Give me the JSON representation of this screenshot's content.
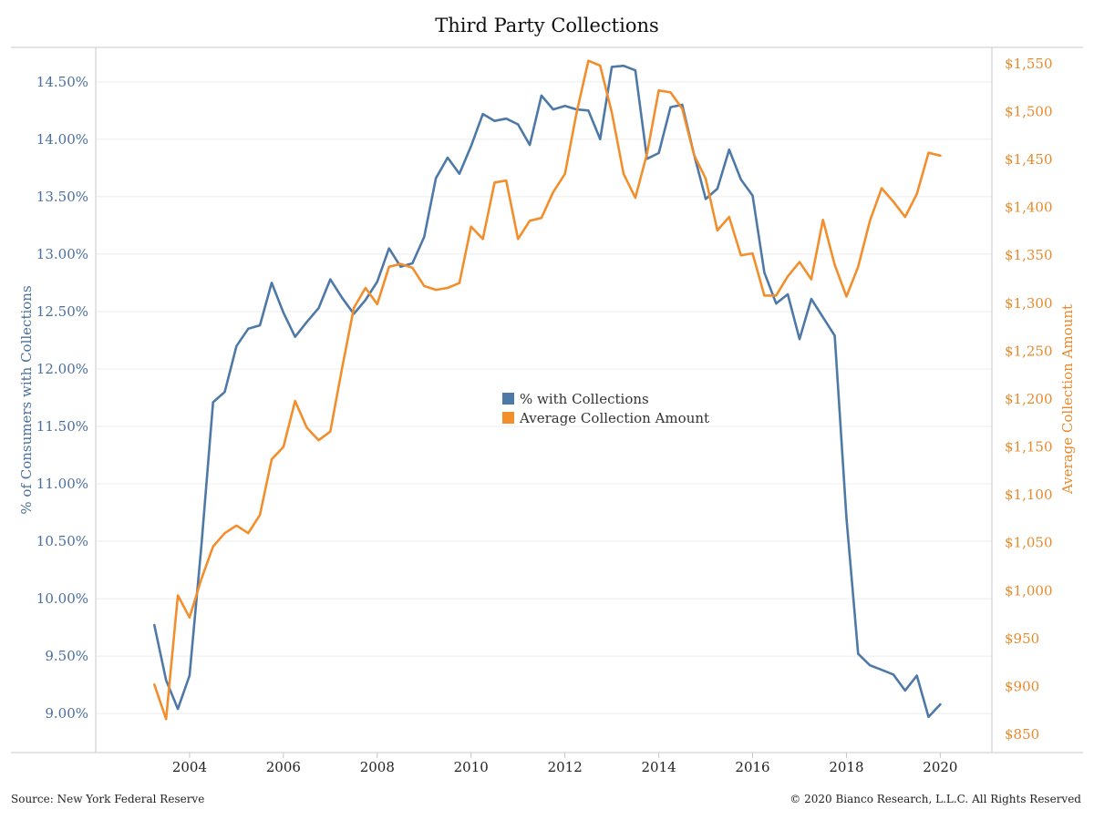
{
  "chart_data": {
    "type": "line",
    "title": "Third Party Collections",
    "x_ticks": [
      "2004",
      "2006",
      "2008",
      "2010",
      "2012",
      "2014",
      "2016",
      "2018",
      "2020"
    ],
    "xlim": [
      2002.0,
      2021.1
    ],
    "ylabel_left": "% of Consumers with Collections",
    "ylabel_right": "Average Collection Amount",
    "ylim_left": [
      8.66,
      14.8
    ],
    "ylim_right": [
      831,
      1567
    ],
    "yticks_left": [
      "9.00%",
      "9.50%",
      "10.00%",
      "10.50%",
      "11.00%",
      "11.50%",
      "12.00%",
      "12.50%",
      "13.00%",
      "13.50%",
      "14.00%",
      "14.50%"
    ],
    "yticks_left_values": [
      9.0,
      9.5,
      10.0,
      10.5,
      11.0,
      11.5,
      12.0,
      12.5,
      13.0,
      13.5,
      14.0,
      14.5
    ],
    "yticks_right": [
      "$850",
      "$900",
      "$950",
      "$1,000",
      "$1,050",
      "$1,100",
      "$1,150",
      "$1,200",
      "$1,250",
      "$1,300",
      "$1,350",
      "$1,400",
      "$1,450",
      "$1,500",
      "$1,550"
    ],
    "yticks_right_values": [
      850,
      900,
      950,
      1000,
      1050,
      1100,
      1150,
      1200,
      1250,
      1300,
      1350,
      1400,
      1450,
      1500,
      1550
    ],
    "legend": [
      "% with Collections",
      "Average Collection Amount"
    ],
    "legend_placement": "center",
    "grid": "horizontal",
    "series": [
      {
        "name": "% with Collections",
        "axis": "left",
        "color": "#4e79a7",
        "x": [
          2003.25,
          2003.5,
          2003.75,
          2004.0,
          2004.25,
          2004.5,
          2004.75,
          2005.0,
          2005.25,
          2005.5,
          2005.75,
          2006.0,
          2006.25,
          2006.5,
          2006.75,
          2007.0,
          2007.25,
          2007.5,
          2007.75,
          2008.0,
          2008.25,
          2008.5,
          2008.75,
          2009.0,
          2009.25,
          2009.5,
          2009.75,
          2010.0,
          2010.25,
          2010.5,
          2010.75,
          2011.0,
          2011.25,
          2011.5,
          2011.75,
          2012.0,
          2012.25,
          2012.5,
          2012.75,
          2013.0,
          2013.25,
          2013.5,
          2013.75,
          2014.0,
          2014.25,
          2014.5,
          2014.75,
          2015.0,
          2015.25,
          2015.5,
          2015.75,
          2016.0,
          2016.25,
          2016.5,
          2016.75,
          2017.0,
          2017.25,
          2017.5,
          2017.75,
          2018.0,
          2018.25,
          2018.5,
          2018.75,
          2019.0,
          2019.25,
          2019.5,
          2019.75,
          2020.0
        ],
        "values": [
          9.77,
          9.29,
          9.04,
          9.33,
          10.45,
          11.71,
          11.8,
          12.2,
          12.35,
          12.38,
          12.75,
          12.49,
          12.28,
          12.41,
          12.53,
          12.78,
          12.62,
          12.48,
          12.6,
          12.76,
          13.05,
          12.89,
          12.92,
          13.15,
          13.66,
          13.84,
          13.7,
          13.94,
          14.22,
          14.16,
          14.18,
          14.13,
          13.95,
          14.38,
          14.26,
          14.29,
          14.26,
          14.25,
          14.0,
          14.63,
          14.64,
          14.6,
          13.83,
          13.88,
          14.28,
          14.3,
          13.87,
          13.48,
          13.57,
          13.91,
          13.65,
          13.51,
          12.84,
          12.57,
          12.65,
          12.26,
          12.61,
          12.45,
          12.29,
          10.7,
          9.52,
          9.42,
          9.38,
          9.34,
          9.2,
          9.33,
          8.97,
          9.08
        ]
      },
      {
        "name": "Average Collection Amount",
        "axis": "right",
        "color": "#f28e2b",
        "x": [
          2003.25,
          2003.5,
          2003.75,
          2004.0,
          2004.25,
          2004.5,
          2004.75,
          2005.0,
          2005.25,
          2005.5,
          2005.75,
          2006.0,
          2006.25,
          2006.5,
          2006.75,
          2007.0,
          2007.25,
          2007.5,
          2007.75,
          2008.0,
          2008.25,
          2008.5,
          2008.75,
          2009.0,
          2009.25,
          2009.5,
          2009.75,
          2010.0,
          2010.25,
          2010.5,
          2010.75,
          2011.0,
          2011.25,
          2011.5,
          2011.75,
          2012.0,
          2012.25,
          2012.5,
          2012.75,
          2013.0,
          2013.25,
          2013.5,
          2013.75,
          2014.0,
          2014.25,
          2014.5,
          2014.75,
          2015.0,
          2015.25,
          2015.5,
          2015.75,
          2016.0,
          2016.25,
          2016.5,
          2016.75,
          2017.0,
          2017.25,
          2017.5,
          2017.75,
          2018.0,
          2018.25,
          2018.5,
          2018.75,
          2019.0,
          2019.25,
          2019.5,
          2019.75,
          2020.0
        ],
        "values": [
          902,
          866,
          995,
          972,
          1012,
          1046,
          1060,
          1068,
          1060,
          1079,
          1137,
          1150,
          1198,
          1170,
          1157,
          1166,
          1232,
          1295,
          1316,
          1299,
          1338,
          1341,
          1337,
          1318,
          1314,
          1316,
          1321,
          1380,
          1367,
          1426,
          1428,
          1367,
          1386,
          1389,
          1416,
          1435,
          1499,
          1553,
          1548,
          1499,
          1435,
          1410,
          1456,
          1522,
          1520,
          1503,
          1455,
          1430,
          1376,
          1390,
          1350,
          1352,
          1308,
          1308,
          1328,
          1343,
          1325,
          1387,
          1340,
          1307,
          1338,
          1386,
          1420,
          1406,
          1390,
          1414,
          1457,
          1454
        ]
      }
    ]
  },
  "footer": {
    "source": "Source: New York Federal Reserve",
    "copyright": "© 2020 Bianco Research, L.L.C. All Rights Reserved"
  },
  "colors": {
    "left_axis": "#4a6f9c",
    "right_axis": "#e8892b",
    "grid": "#ececec",
    "frame": "#c8c8c8"
  }
}
